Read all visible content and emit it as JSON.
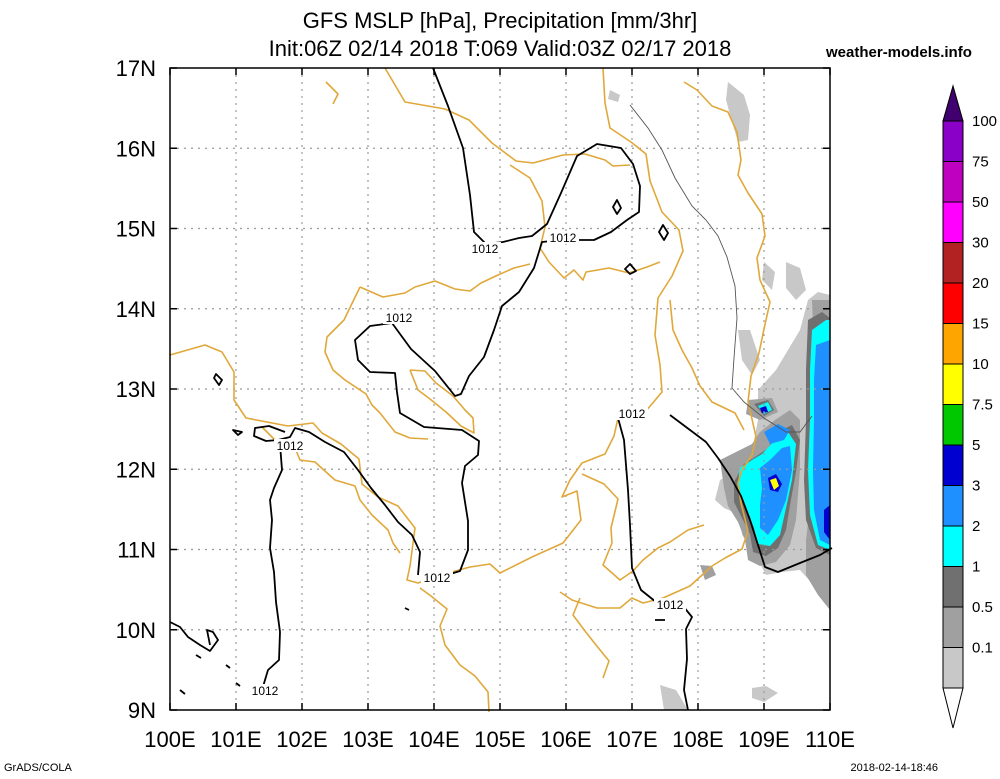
{
  "header": {
    "title_line1": "GFS MSLP [hPa], Precipitation [mm/3hr]",
    "title_line2": "Init:06Z 02/14 2018 T:069 Valid:03Z 02/17 2018",
    "site": "weather-models.info"
  },
  "footer": {
    "left": "GrADS/COLA",
    "right": "2018-02-14-18:46"
  },
  "map": {
    "lon_range": [
      100,
      110
    ],
    "lat_range": [
      9,
      17
    ],
    "lon_labels": [
      "100E",
      "101E",
      "102E",
      "103E",
      "104E",
      "105E",
      "106E",
      "107E",
      "108E",
      "109E",
      "110E"
    ],
    "lat_labels": [
      "9N",
      "10N",
      "11N",
      "12N",
      "13N",
      "14N",
      "15N",
      "16N",
      "17N"
    ],
    "isobar_label": "1012",
    "coastline_color": "#e0a83a",
    "isobar_color": "#000000",
    "grid": "dotted"
  },
  "colorbar": {
    "labels": [
      "0.1",
      "0.5",
      "1",
      "2",
      "3",
      "5",
      "7.5",
      "10",
      "15",
      "20",
      "30",
      "50",
      "75",
      "100"
    ],
    "colors": [
      "#c8c8c8",
      "#a0a0a0",
      "#707070",
      "#00ffff",
      "#1e90ff",
      "#0000d0",
      "#00c800",
      "#ffff00",
      "#ffa500",
      "#ff0000",
      "#b22222",
      "#ff00ff",
      "#c000c0",
      "#8b00c8",
      "#400070"
    ]
  }
}
